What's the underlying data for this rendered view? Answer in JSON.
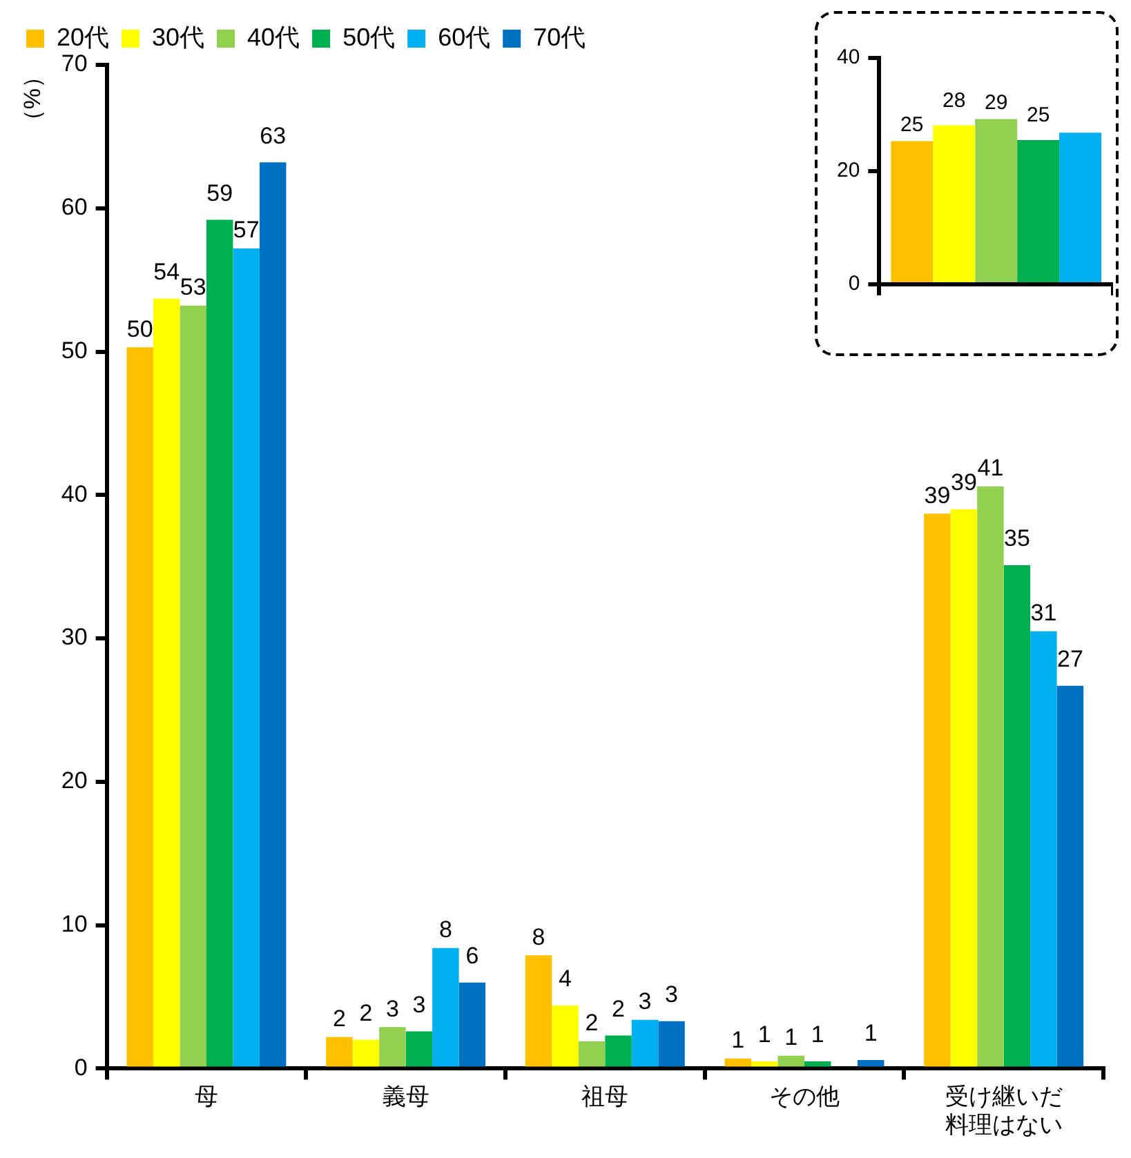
{
  "chart_data": [
    {
      "type": "bar",
      "ylabel": "（%）",
      "categories": [
        "母",
        "義母",
        "祖母",
        "その他",
        "受け継いだ料理はない"
      ],
      "ylim": [
        0,
        70
      ],
      "yticks": [
        0,
        10,
        20,
        30,
        40,
        50,
        60,
        70
      ],
      "grid": false,
      "legend": "top",
      "series": [
        {
          "name": "20代",
          "color": "#ffc000",
          "values": [
            50.3,
            2.2,
            7.9,
            0.7,
            38.7
          ],
          "value_labels": [
            "50",
            "2",
            "8",
            "1",
            "39"
          ]
        },
        {
          "name": "30代",
          "color": "#ffff00",
          "values": [
            53.7,
            2.0,
            4.4,
            0.5,
            39.0
          ],
          "value_labels": [
            "54",
            "2",
            "4",
            "1",
            "39"
          ]
        },
        {
          "name": "40代",
          "color": "#92d050",
          "values": [
            53.2,
            2.9,
            1.9,
            0.9,
            40.6
          ],
          "value_labels": [
            "53",
            "3",
            "2",
            "1",
            "41"
          ]
        },
        {
          "name": "50代",
          "color": "#00b050",
          "values": [
            59.2,
            2.6,
            2.3,
            0.5,
            35.1
          ],
          "value_labels": [
            "59",
            "3",
            "2",
            "1",
            "35"
          ]
        },
        {
          "name": "60代",
          "color": "#00b0f0",
          "values": [
            57.2,
            8.4,
            3.4,
            0,
            30.5
          ],
          "value_labels": [
            "57",
            "8",
            "3",
            null,
            "31"
          ]
        },
        {
          "name": "70代",
          "color": "#0070c0",
          "values": [
            63.2,
            6.0,
            3.3,
            0.6,
            26.7
          ],
          "value_labels": [
            "63",
            "6",
            "3",
            "1",
            "27"
          ]
        }
      ]
    },
    {
      "type": "bar",
      "categories": [
        null
      ],
      "ylim": [
        0,
        40
      ],
      "yticks": [
        0,
        20,
        40
      ],
      "grid": false,
      "series": [
        {
          "color": "#ffc000",
          "values": [
            25.3
          ],
          "value_labels": [
            "25"
          ]
        },
        {
          "color": "#ffff00",
          "values": [
            28.1
          ],
          "value_labels": [
            "28"
          ]
        },
        {
          "color": "#92d050",
          "values": [
            29.2
          ],
          "value_labels": [
            "29"
          ]
        },
        {
          "color": "#00b050",
          "values": [
            25.5
          ],
          "value_labels": [
            "25"
          ]
        },
        {
          "color": "#00b0f0",
          "values": [
            26.8
          ],
          "value_labels": [
            null
          ]
        }
      ]
    }
  ]
}
